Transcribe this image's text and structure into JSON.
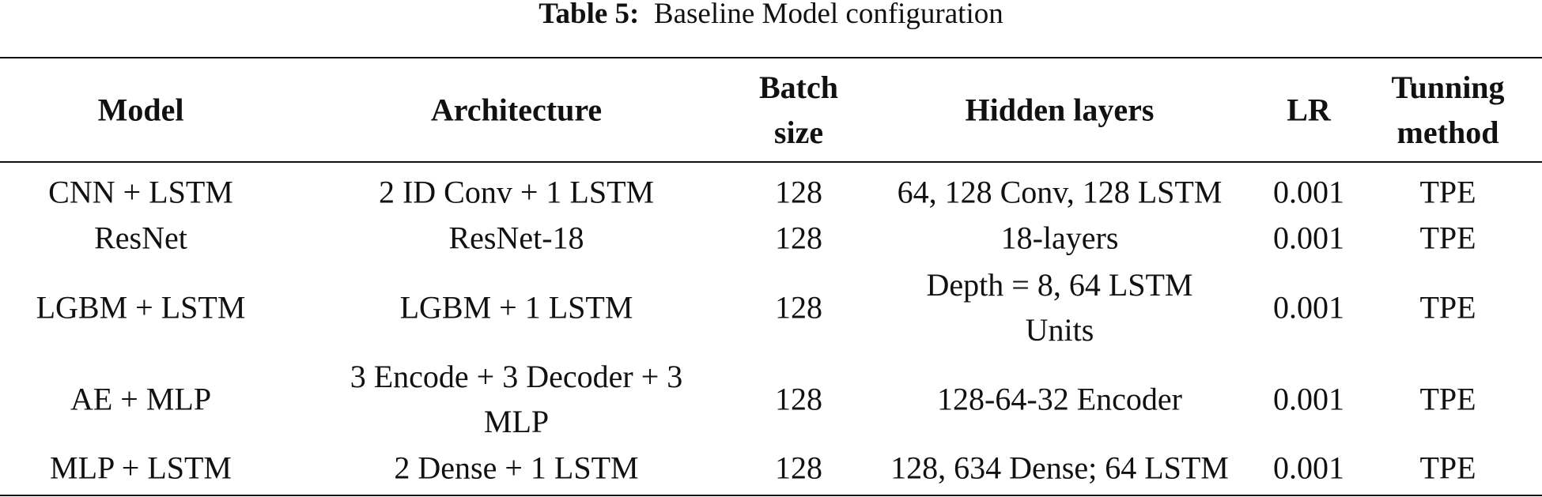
{
  "table": {
    "caption_label": "Table 5:",
    "caption": "Baseline Model configuration",
    "header": [
      "Model",
      "Architecture",
      "Batch\nsize",
      "Hidden layers",
      "LR",
      "Tunning\nmethod"
    ],
    "rows": [
      [
        "CNN + LSTM",
        "2 ID Conv + 1 LSTM",
        "128",
        "64, 128 Conv, 128 LSTM",
        "0.001",
        "TPE"
      ],
      [
        "ResNet",
        "ResNet-18",
        "128",
        "18-layers",
        "0.001",
        "TPE"
      ],
      [
        "LGBM + LSTM",
        "LGBM + 1 LSTM",
        "128",
        "Depth = 8, 64 LSTM\nUnits",
        "0.001",
        "TPE"
      ],
      [
        "AE + MLP",
        "3 Encode + 3 Decoder + 3\nMLP",
        "128",
        "128-64-32 Encoder",
        "0.001",
        "TPE"
      ],
      [
        "MLP + LSTM",
        "2 Dense + 1 LSTM",
        "128",
        "128, 634 Dense; 64 LSTM",
        "0.001",
        "TPE"
      ]
    ]
  }
}
